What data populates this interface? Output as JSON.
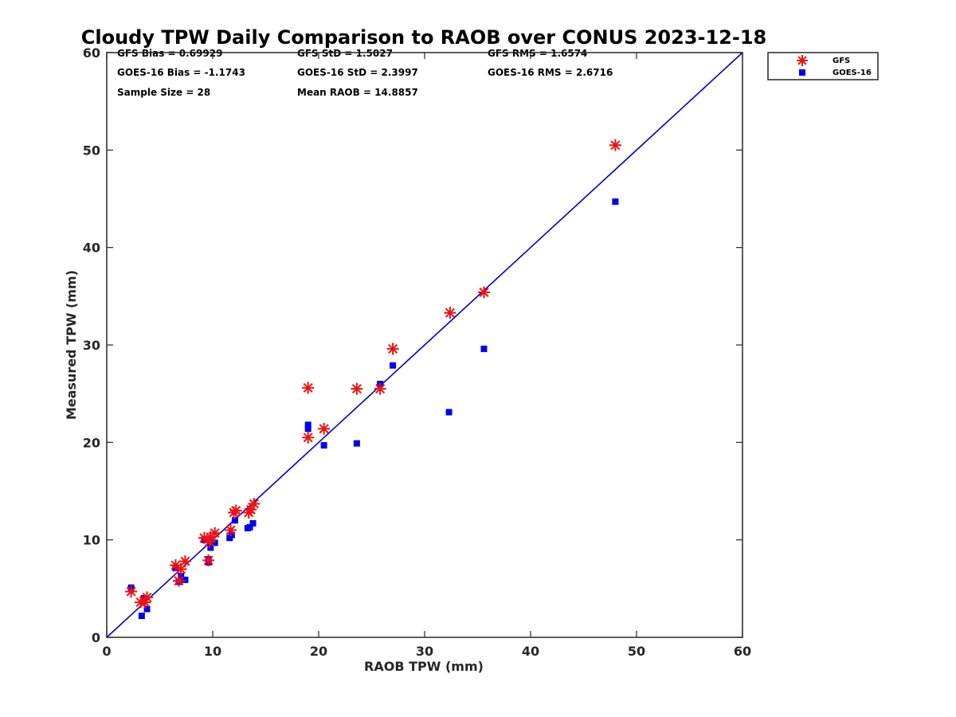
{
  "chart_data": {
    "type": "scatter",
    "title": "Cloudy TPW Daily Comparison to RAOB over CONUS 2023-12-18",
    "xlabel": "RAOB TPW (mm)",
    "ylabel": "Measured TPW (mm)",
    "xlim": [
      0,
      60
    ],
    "ylim": [
      0,
      60
    ],
    "xticks": [
      "0",
      "10",
      "20",
      "30",
      "40",
      "50",
      "60"
    ],
    "yticks": [
      "0",
      "10",
      "20",
      "30",
      "40",
      "50",
      "60"
    ],
    "grid": false,
    "legend_position": "top-right-outside",
    "reference_line": {
      "from": [
        0,
        0
      ],
      "to": [
        60,
        60
      ],
      "color": "#0000cc"
    },
    "stats": [
      [
        "GFS Bias = 0.69929",
        "GFS StD = 1.5027",
        "GFS RMS = 1.6574"
      ],
      [
        "GOES-16 Bias = -1.1743",
        "GOES-16 StD = 2.3997",
        "GOES-16 RMS = 2.6716"
      ],
      [
        "Sample Size = 28",
        "Mean RAOB = 14.8857",
        ""
      ]
    ],
    "series": [
      {
        "name": "GFS",
        "marker": "asterisk",
        "color": "#ee1111",
        "x": [
          2.3,
          3.2,
          3.6,
          3.8,
          6.5,
          6.8,
          7.0,
          7.4,
          9.2,
          9.6,
          9.7,
          9.8,
          10.2,
          11.7,
          12.0,
          12.2,
          13.4,
          13.6,
          13.9,
          19.0,
          19.0,
          20.5,
          23.6,
          25.8,
          27.0,
          32.4,
          35.6,
          48.0
        ],
        "y": [
          4.7,
          3.6,
          3.6,
          4.1,
          7.4,
          5.8,
          7.0,
          7.8,
          10.2,
          7.9,
          9.8,
          10.3,
          10.7,
          11.0,
          12.8,
          13.0,
          12.8,
          13.1,
          13.7,
          25.6,
          20.5,
          21.4,
          25.5,
          25.5,
          29.6,
          33.3,
          35.4,
          50.5
        ]
      },
      {
        "name": "GOES-16",
        "marker": "square",
        "color": "#0000ee",
        "x": [
          2.3,
          3.3,
          3.5,
          3.8,
          6.5,
          6.8,
          7.0,
          7.4,
          9.2,
          9.6,
          9.6,
          9.8,
          10.2,
          11.6,
          11.8,
          12.1,
          13.3,
          13.5,
          13.8,
          19.0,
          19.0,
          20.5,
          23.6,
          25.8,
          27.0,
          32.3,
          35.6,
          48.0
        ],
        "y": [
          5.1,
          2.2,
          4.0,
          2.9,
          7.1,
          5.7,
          6.3,
          5.9,
          10.0,
          7.7,
          8.0,
          9.2,
          9.7,
          10.2,
          10.5,
          12.0,
          11.2,
          11.3,
          11.7,
          21.8,
          21.4,
          19.7,
          19.9,
          26.0,
          27.9,
          23.1,
          29.6,
          44.7
        ]
      }
    ]
  }
}
